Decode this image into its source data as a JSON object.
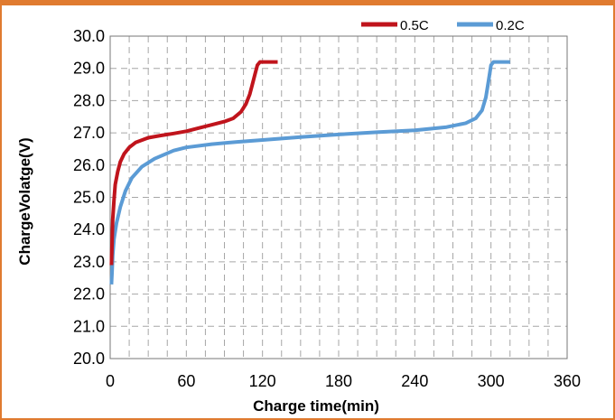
{
  "chart_data": {
    "type": "line",
    "xlabel": "Charge time(min)",
    "ylabel": "ChargeVolatge(V)",
    "xlim": [
      0,
      360
    ],
    "ylim": [
      20.0,
      30.0
    ],
    "xticks": [
      0,
      60,
      120,
      180,
      240,
      300,
      360
    ],
    "xtick_labels": [
      "0",
      "60",
      "120",
      "180",
      "240",
      "300",
      "360"
    ],
    "yticks": [
      20.0,
      21.0,
      22.0,
      23.0,
      24.0,
      25.0,
      26.0,
      27.0,
      28.0,
      29.0,
      30.0
    ],
    "ytick_labels": [
      "20.0",
      "21.0",
      "22.0",
      "23.0",
      "24.0",
      "25.0",
      "26.0",
      "27.0",
      "28.0",
      "29.0",
      "30.0"
    ],
    "grid": true,
    "legend_position": "top-right",
    "series": [
      {
        "name": "0.5C",
        "color": "#c0141c",
        "points": [
          [
            1,
            22.9
          ],
          [
            1.5,
            23.6
          ],
          [
            2,
            24.3
          ],
          [
            3,
            24.9
          ],
          [
            4,
            25.4
          ],
          [
            6,
            25.8
          ],
          [
            8,
            26.1
          ],
          [
            11,
            26.35
          ],
          [
            15,
            26.55
          ],
          [
            20,
            26.7
          ],
          [
            30,
            26.85
          ],
          [
            40,
            26.92
          ],
          [
            50,
            26.98
          ],
          [
            60,
            27.05
          ],
          [
            70,
            27.15
          ],
          [
            80,
            27.25
          ],
          [
            90,
            27.35
          ],
          [
            97,
            27.45
          ],
          [
            103,
            27.65
          ],
          [
            107,
            27.9
          ],
          [
            110,
            28.2
          ],
          [
            112,
            28.5
          ],
          [
            114,
            28.8
          ],
          [
            116,
            29.1
          ],
          [
            118,
            29.2
          ],
          [
            132,
            29.2
          ]
        ]
      },
      {
        "name": "0.2C",
        "color": "#5b9bd5",
        "points": [
          [
            1,
            22.3
          ],
          [
            1.5,
            22.7
          ],
          [
            2,
            23.2
          ],
          [
            3,
            23.7
          ],
          [
            5,
            24.2
          ],
          [
            8,
            24.7
          ],
          [
            12,
            25.2
          ],
          [
            17,
            25.6
          ],
          [
            25,
            25.95
          ],
          [
            35,
            26.2
          ],
          [
            50,
            26.45
          ],
          [
            60,
            26.55
          ],
          [
            80,
            26.65
          ],
          [
            100,
            26.72
          ],
          [
            120,
            26.78
          ],
          [
            150,
            26.87
          ],
          [
            180,
            26.95
          ],
          [
            210,
            27.02
          ],
          [
            240,
            27.08
          ],
          [
            265,
            27.18
          ],
          [
            280,
            27.3
          ],
          [
            288,
            27.45
          ],
          [
            293,
            27.7
          ],
          [
            296,
            28.1
          ],
          [
            298,
            28.6
          ],
          [
            300,
            29.1
          ],
          [
            302,
            29.2
          ],
          [
            315,
            29.2
          ]
        ]
      }
    ]
  }
}
